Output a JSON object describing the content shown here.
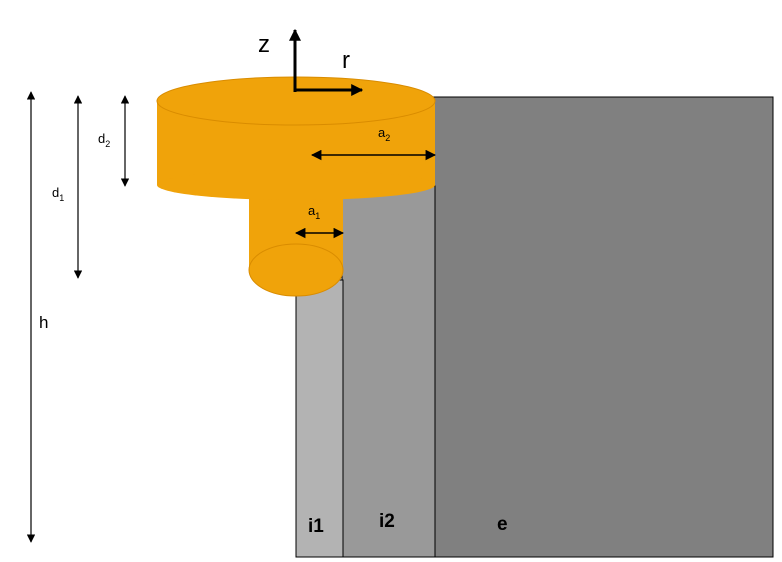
{
  "axes": {
    "z_label": "z",
    "r_label": "r"
  },
  "dimensions": {
    "d2": {
      "base": "d",
      "sub": "2"
    },
    "d1": {
      "base": "d",
      "sub": "1"
    },
    "a2": {
      "base": "a",
      "sub": "2"
    },
    "a1": {
      "base": "a",
      "sub": "1"
    },
    "h": {
      "base": "h",
      "sub": ""
    }
  },
  "regions": {
    "i1": "i1",
    "i2": "i2",
    "e": "e"
  },
  "colors": {
    "cylinder": "#F0A30A",
    "cylinder_edge": "#D98C00",
    "layer_i1": "#B3B3B3",
    "layer_i2": "#999999",
    "layer_e": "#808080",
    "outline": "#000000"
  }
}
